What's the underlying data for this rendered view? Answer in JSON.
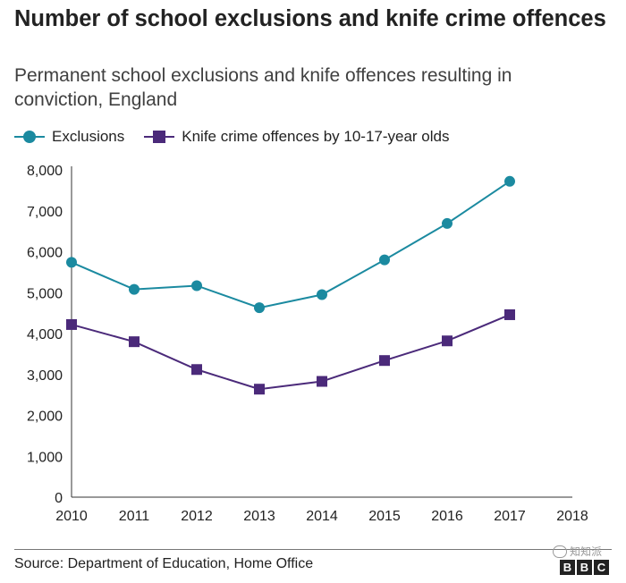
{
  "header": {
    "title": "Number of school exclusions and knife crime offences",
    "subtitle": "Permanent school exclusions and knife offences resulting in conviction, England"
  },
  "legend": {
    "exclusions": "Exclusions",
    "knife": "Knife crime offences by 10-17-year olds"
  },
  "footer": {
    "source": "Source: Department of Education, Home Office",
    "watermark": "知知派",
    "logo": [
      "B",
      "B",
      "C"
    ]
  },
  "colors": {
    "exclusions": "#1b8aa0",
    "knife": "#4b2a7a",
    "axis": "#333333",
    "grid": "#dddddd"
  },
  "chart_data": {
    "type": "line",
    "title": "Number of school exclusions and knife crime offences",
    "subtitle": "Permanent school exclusions and knife offences resulting in conviction, England",
    "xlabel": "",
    "ylabel": "",
    "x": [
      2010,
      2011,
      2012,
      2013,
      2014,
      2015,
      2016,
      2017,
      2018
    ],
    "xlim": [
      2010,
      2018
    ],
    "ylim": [
      0,
      8000
    ],
    "yticks": [
      0,
      1000,
      2000,
      3000,
      4000,
      5000,
      6000,
      7000,
      8000
    ],
    "ytick_labels": [
      "0",
      "1,000",
      "2,000",
      "3,000",
      "4,000",
      "5,000",
      "6,000",
      "7,000",
      "8,000"
    ],
    "xtick_labels": [
      "2010",
      "2011",
      "2012",
      "2013",
      "2014",
      "2015",
      "2016",
      "2017",
      "2018"
    ],
    "grid": false,
    "legend_position": "top-left",
    "series": [
      {
        "name": "Exclusions",
        "marker": "circle",
        "x": [
          2010,
          2011,
          2012,
          2013,
          2014,
          2015,
          2016,
          2017
        ],
        "values": [
          5740,
          5080,
          5170,
          4630,
          4950,
          5800,
          6690,
          7720
        ]
      },
      {
        "name": "Knife crime offences by 10-17-year olds",
        "marker": "square",
        "x": [
          2010,
          2011,
          2012,
          2013,
          2014,
          2015,
          2016,
          2017
        ],
        "values": [
          4220,
          3800,
          3120,
          2640,
          2830,
          3340,
          3820,
          4460
        ]
      }
    ],
    "source": "Source: Department of Education, Home Office"
  }
}
